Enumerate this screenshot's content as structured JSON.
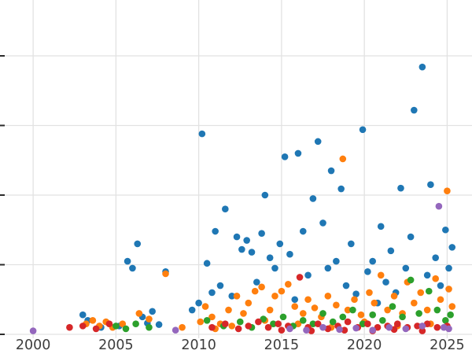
{
  "chart_data": {
    "type": "scatter",
    "title": "",
    "xlabel": "",
    "ylabel": "",
    "grid": true,
    "legend": false,
    "xlim": [
      1998.0,
      2026.5
    ],
    "ylim": [
      -0.3,
      4.8
    ],
    "x_ticks": [
      2000,
      2005,
      2010,
      2015,
      2020,
      2025
    ],
    "x_tick_labels": [
      "2000",
      "2005",
      "2010",
      "2015",
      "2020",
      "2025"
    ],
    "y_gridlines": [
      0,
      1,
      2,
      3,
      4
    ],
    "marker_radius": 4.3,
    "grid_color": "#e2e2e2",
    "tick_mark_color": "#2b2b2b",
    "series": [
      {
        "name": "series_1",
        "color": "#1f77b4",
        "points": [
          [
            2003.0,
            0.28
          ],
          [
            2003.3,
            0.2
          ],
          [
            2004.1,
            0.1
          ],
          [
            2005.2,
            0.12
          ],
          [
            2005.7,
            1.05
          ],
          [
            2006.0,
            0.95
          ],
          [
            2006.3,
            1.3
          ],
          [
            2006.6,
            0.25
          ],
          [
            2006.9,
            0.16
          ],
          [
            2007.2,
            0.33
          ],
          [
            2007.6,
            0.14
          ],
          [
            2008.0,
            0.9
          ],
          [
            2009.6,
            0.35
          ],
          [
            2010.0,
            0.45
          ],
          [
            2010.2,
            2.88
          ],
          [
            2010.5,
            1.02
          ],
          [
            2010.8,
            0.6
          ],
          [
            2011.0,
            1.48
          ],
          [
            2011.3,
            0.7
          ],
          [
            2011.6,
            1.8
          ],
          [
            2012.0,
            0.55
          ],
          [
            2012.3,
            1.4
          ],
          [
            2012.6,
            1.22
          ],
          [
            2012.9,
            1.35
          ],
          [
            2013.2,
            1.18
          ],
          [
            2013.5,
            0.75
          ],
          [
            2013.8,
            1.45
          ],
          [
            2014.0,
            2.0
          ],
          [
            2014.3,
            1.1
          ],
          [
            2014.6,
            0.95
          ],
          [
            2014.9,
            1.3
          ],
          [
            2015.2,
            2.55
          ],
          [
            2015.5,
            1.15
          ],
          [
            2015.8,
            0.5
          ],
          [
            2016.0,
            2.6
          ],
          [
            2016.3,
            1.48
          ],
          [
            2016.6,
            0.85
          ],
          [
            2016.9,
            1.95
          ],
          [
            2017.2,
            2.77
          ],
          [
            2017.5,
            1.6
          ],
          [
            2017.8,
            0.95
          ],
          [
            2018.0,
            2.35
          ],
          [
            2018.3,
            1.05
          ],
          [
            2018.6,
            2.09
          ],
          [
            2018.9,
            0.7
          ],
          [
            2019.2,
            1.3
          ],
          [
            2019.5,
            0.58
          ],
          [
            2019.9,
            2.94
          ],
          [
            2020.2,
            0.9
          ],
          [
            2020.5,
            1.05
          ],
          [
            2020.8,
            0.45
          ],
          [
            2021.0,
            1.55
          ],
          [
            2021.3,
            0.75
          ],
          [
            2021.6,
            1.2
          ],
          [
            2021.9,
            0.6
          ],
          [
            2022.2,
            2.1
          ],
          [
            2022.5,
            0.95
          ],
          [
            2022.8,
            1.4
          ],
          [
            2023.0,
            3.22
          ],
          [
            2023.5,
            3.84
          ],
          [
            2023.8,
            0.85
          ],
          [
            2024.0,
            2.15
          ],
          [
            2024.3,
            1.1
          ],
          [
            2024.6,
            0.7
          ],
          [
            2024.9,
            1.5
          ],
          [
            2025.1,
            0.95
          ],
          [
            2025.3,
            1.25
          ]
        ]
      },
      {
        "name": "series_2",
        "color": "#ff7f0e",
        "points": [
          [
            2003.2,
            0.15
          ],
          [
            2003.6,
            0.2
          ],
          [
            2004.0,
            0.12
          ],
          [
            2004.4,
            0.18
          ],
          [
            2004.8,
            0.1
          ],
          [
            2005.4,
            0.15
          ],
          [
            2006.4,
            0.3
          ],
          [
            2007.0,
            0.22
          ],
          [
            2008.0,
            0.87
          ],
          [
            2009.0,
            0.1
          ],
          [
            2010.1,
            0.18
          ],
          [
            2010.4,
            0.4
          ],
          [
            2010.8,
            0.25
          ],
          [
            2011.0,
            0.08
          ],
          [
            2011.3,
            0.15
          ],
          [
            2011.8,
            0.35
          ],
          [
            2012.0,
            0.12
          ],
          [
            2012.3,
            0.55
          ],
          [
            2012.7,
            0.3
          ],
          [
            2013.0,
            0.45
          ],
          [
            2013.4,
            0.62
          ],
          [
            2013.8,
            0.68
          ],
          [
            2014.0,
            0.2
          ],
          [
            2014.3,
            0.35
          ],
          [
            2014.6,
            0.55
          ],
          [
            2015.0,
            0.62
          ],
          [
            2015.4,
            0.72
          ],
          [
            2015.8,
            0.4
          ],
          [
            2016.0,
            0.15
          ],
          [
            2016.3,
            0.3
          ],
          [
            2016.6,
            0.5
          ],
          [
            2017.0,
            0.38
          ],
          [
            2017.4,
            0.25
          ],
          [
            2017.8,
            0.55
          ],
          [
            2018.0,
            0.1
          ],
          [
            2018.3,
            0.42
          ],
          [
            2018.7,
            2.52
          ],
          [
            2019.0,
            0.35
          ],
          [
            2019.4,
            0.5
          ],
          [
            2019.8,
            0.28
          ],
          [
            2020.0,
            0.18
          ],
          [
            2020.3,
            0.6
          ],
          [
            2020.6,
            0.45
          ],
          [
            2021.0,
            0.85
          ],
          [
            2021.4,
            0.35
          ],
          [
            2021.8,
            0.55
          ],
          [
            2022.0,
            0.12
          ],
          [
            2022.3,
            0.3
          ],
          [
            2022.6,
            0.75
          ],
          [
            2023.0,
            0.45
          ],
          [
            2023.4,
            0.6
          ],
          [
            2023.8,
            0.35
          ],
          [
            2024.0,
            0.15
          ],
          [
            2024.3,
            0.8
          ],
          [
            2024.6,
            0.5
          ],
          [
            2025.0,
            2.06
          ],
          [
            2025.1,
            0.65
          ],
          [
            2025.3,
            0.4
          ]
        ]
      },
      {
        "name": "series_3",
        "color": "#2ca02c",
        "points": [
          [
            2005.0,
            0.12
          ],
          [
            2005.6,
            0.08
          ],
          [
            2006.2,
            0.15
          ],
          [
            2007.0,
            0.1
          ],
          [
            2010.5,
            0.2
          ],
          [
            2011.5,
            0.12
          ],
          [
            2012.5,
            0.18
          ],
          [
            2013.2,
            0.1
          ],
          [
            2013.9,
            0.22
          ],
          [
            2014.5,
            0.15
          ],
          [
            2015.1,
            0.25
          ],
          [
            2015.7,
            0.12
          ],
          [
            2016.3,
            0.2
          ],
          [
            2016.9,
            0.15
          ],
          [
            2017.5,
            0.3
          ],
          [
            2018.1,
            0.18
          ],
          [
            2018.7,
            0.25
          ],
          [
            2019.3,
            0.35
          ],
          [
            2019.9,
            0.15
          ],
          [
            2020.5,
            0.28
          ],
          [
            2021.1,
            0.2
          ],
          [
            2021.7,
            0.4
          ],
          [
            2022.3,
            0.25
          ],
          [
            2022.8,
            0.78
          ],
          [
            2023.3,
            0.3
          ],
          [
            2023.9,
            0.62
          ],
          [
            2024.4,
            0.35
          ],
          [
            2024.9,
            0.2
          ],
          [
            2025.2,
            0.28
          ]
        ]
      },
      {
        "name": "series_4",
        "color": "#d62728",
        "points": [
          [
            2002.2,
            0.1
          ],
          [
            2003.0,
            0.12
          ],
          [
            2003.8,
            0.08
          ],
          [
            2004.6,
            0.15
          ],
          [
            2010.8,
            0.1
          ],
          [
            2011.6,
            0.15
          ],
          [
            2012.4,
            0.08
          ],
          [
            2013.0,
            0.12
          ],
          [
            2013.6,
            0.18
          ],
          [
            2014.2,
            0.1
          ],
          [
            2014.8,
            0.15
          ],
          [
            2015.0,
            0.06
          ],
          [
            2015.4,
            0.12
          ],
          [
            2016.1,
            0.82
          ],
          [
            2016.6,
            0.1
          ],
          [
            2016.8,
            0.05
          ],
          [
            2017.2,
            0.15
          ],
          [
            2017.8,
            0.08
          ],
          [
            2018.4,
            0.12
          ],
          [
            2018.8,
            0.06
          ],
          [
            2019.0,
            0.18
          ],
          [
            2019.6,
            0.1
          ],
          [
            2020.2,
            0.15
          ],
          [
            2020.5,
            0.05
          ],
          [
            2020.8,
            0.1
          ],
          [
            2021.4,
            0.12
          ],
          [
            2021.8,
            0.07
          ],
          [
            2022.0,
            0.15
          ],
          [
            2022.6,
            0.1
          ],
          [
            2023.2,
            0.12
          ],
          [
            2023.5,
            0.05
          ],
          [
            2023.8,
            0.15
          ],
          [
            2024.4,
            0.1
          ],
          [
            2025.0,
            0.12
          ]
        ]
      },
      {
        "name": "series_5",
        "color": "#9467bd",
        "points": [
          [
            2000.0,
            0.05
          ],
          [
            2008.6,
            0.06
          ],
          [
            2015.5,
            0.08
          ],
          [
            2016.5,
            0.06
          ],
          [
            2017.5,
            0.1
          ],
          [
            2018.5,
            0.07
          ],
          [
            2019.5,
            0.09
          ],
          [
            2020.5,
            0.06
          ],
          [
            2021.5,
            0.1
          ],
          [
            2022.5,
            0.08
          ],
          [
            2023.5,
            0.12
          ],
          [
            2024.5,
            1.84
          ],
          [
            2024.8,
            0.1
          ],
          [
            2025.1,
            0.08
          ]
        ]
      }
    ]
  }
}
